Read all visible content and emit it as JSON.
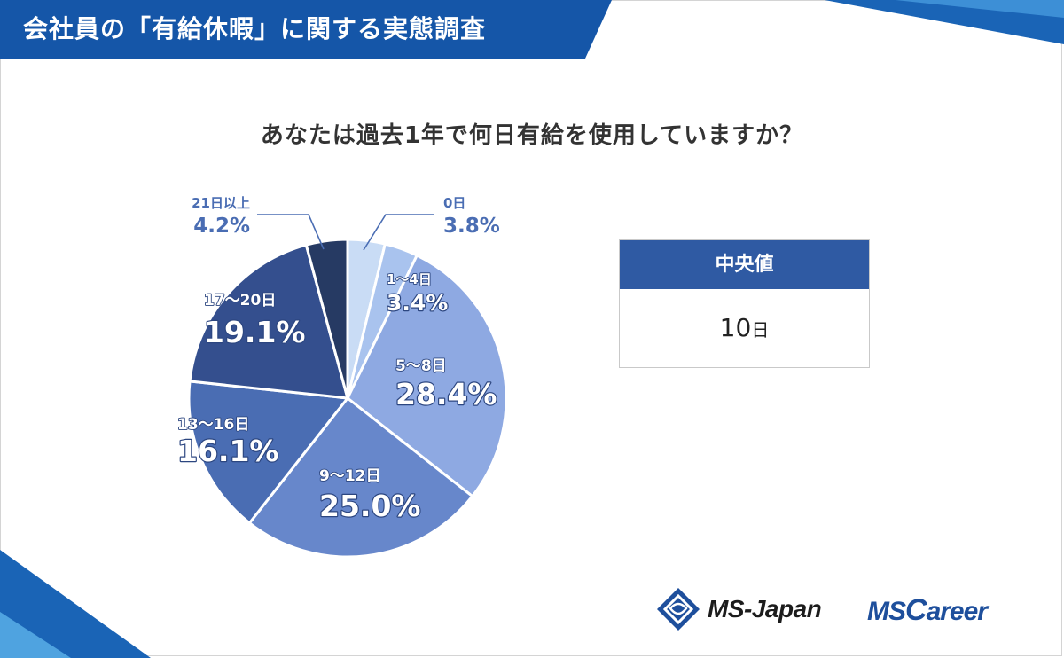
{
  "header": {
    "title": "会社員の「有給休暇」に関する実態調査"
  },
  "question": "あなたは過去1年で何日有給を使用していますか？",
  "median": {
    "label": "中央値",
    "value": "10",
    "unit": "日"
  },
  "logos": {
    "msjapan": "MS-Japan",
    "mscareer_ms": "MS",
    "mscareer_c": "C",
    "mscareer_rest": "areer"
  },
  "colors": {
    "banner": "#1556a8",
    "accent": "#2f5aa3"
  },
  "chart_data": {
    "type": "pie",
    "title": "あなたは過去1年で何日有給を使用していますか？",
    "start": "12 o'clock, clockwise",
    "slices": [
      {
        "category": "0日",
        "value": 3.8,
        "label": "3.8%",
        "color": "#c9dcf5"
      },
      {
        "category": "1〜4日",
        "value": 3.4,
        "label": "3.4%",
        "color": "#a9c3ee"
      },
      {
        "category": "5〜8日",
        "value": 28.4,
        "label": "28.4%",
        "color": "#8ea9e2"
      },
      {
        "category": "9〜12日",
        "value": 25.0,
        "label": "25.0%",
        "color": "#6787cb"
      },
      {
        "category": "13〜16日",
        "value": 16.1,
        "label": "16.1%",
        "color": "#4a6db3"
      },
      {
        "category": "17〜20日",
        "value": 19.1,
        "label": "19.1%",
        "color": "#344f8e"
      },
      {
        "category": "21日以上",
        "value": 4.2,
        "label": "4.2%",
        "color": "#263a63"
      }
    ]
  }
}
